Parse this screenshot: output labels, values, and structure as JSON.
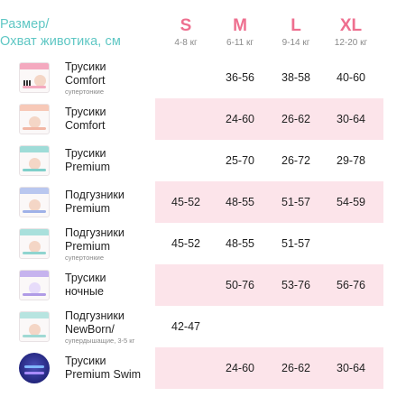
{
  "header": {
    "title_line1": "Размер/",
    "title_line2": "Охват животика, см"
  },
  "sizes": [
    {
      "label": "S",
      "range": "4-8 кг"
    },
    {
      "label": "M",
      "range": "6-11 кг"
    },
    {
      "label": "L",
      "range": "9-14 кг"
    },
    {
      "label": "XL",
      "range": "12-20 кг"
    }
  ],
  "colors": {
    "accent_teal": "#5fc7c4",
    "accent_pink": "#ee6f8f",
    "row_pink": "#fce4ea"
  },
  "products": [
    {
      "name1": "Трусики",
      "name2": "Comfort",
      "sub": "супертонкие",
      "icon": "pants-comfort-thin-pack-icon",
      "s": "",
      "m": "36-56",
      "l": "38-58",
      "xl": "40-60"
    },
    {
      "name1": "Трусики",
      "name2": "Comfort",
      "sub": "",
      "icon": "pants-comfort-pack-icon",
      "s": "",
      "m": "24-60",
      "l": "26-62",
      "xl": "30-64"
    },
    {
      "name1": "Трусики",
      "name2": "Premium",
      "sub": "",
      "icon": "pants-premium-pack-icon",
      "s": "",
      "m": "25-70",
      "l": "26-72",
      "xl": "29-78"
    },
    {
      "name1": "Подгузники",
      "name2": "Premium",
      "sub": "",
      "icon": "diapers-premium-pack-icon",
      "s": "45-52",
      "m": "48-55",
      "l": "51-57",
      "xl": "54-59"
    },
    {
      "name1": "Подгузники",
      "name2": "Premium",
      "sub": "супертонкие",
      "icon": "diapers-premium-thin-pack-icon",
      "s": "45-52",
      "m": "48-55",
      "l": "51-57",
      "xl": ""
    },
    {
      "name1": "Трусики",
      "name2": "ночные",
      "sub": "",
      "icon": "pants-night-pack-icon",
      "s": "",
      "m": "50-76",
      "l": "53-76",
      "xl": "56-76"
    },
    {
      "name1": "Подгузники",
      "name2": "NewBorn/",
      "sub": "супердышащие, 3-5 кг",
      "icon": "diapers-newborn-pack-icon",
      "s": "42-47",
      "m": "",
      "l": "",
      "xl": ""
    },
    {
      "name1": "Трусики",
      "name2": "Premium Swim",
      "sub": "",
      "icon": "swim-pants-icon",
      "s": "",
      "m": "24-60",
      "l": "26-62",
      "xl": "30-64"
    }
  ]
}
